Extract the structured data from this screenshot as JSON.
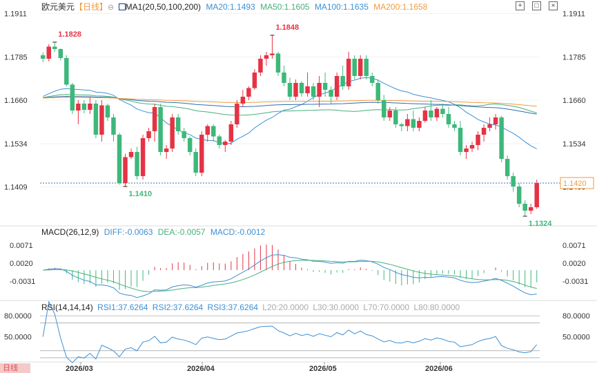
{
  "header": {
    "symbol": "欧元美元",
    "period_label": "【日线】",
    "period_icon": "settings-circle-icon",
    "ma_icon": "chart-indicator-icon",
    "ma_title": "MA1(20,50,100,200)",
    "ma20": "MA20:1.1493",
    "ma50": "MA50:1.1605",
    "ma100": "MA100:1.1635",
    "ma200": "MA200:1.1658"
  },
  "toolbar": {
    "icons": [
      "expand-icon",
      "fullscreen-icon",
      "close-icon"
    ]
  },
  "colors": {
    "up": "#e53344",
    "down": "#3db87a",
    "ma20": "#3b8fd4",
    "ma50": "#45b07a",
    "ma100": "#2f6cb0",
    "ma200": "#f09a3a",
    "text_label": "#555555"
  },
  "chart_data": [
    {
      "type": "candlestick",
      "title": "欧元美元",
      "x_labels": [
        "2026/03",
        "2026/04",
        "2026/05",
        "2026/06"
      ],
      "y_ticks": [
        "1.1911",
        "1.1785",
        "1.1660",
        "1.1534",
        "1.1409"
      ],
      "ylim": [
        1.13,
        1.193
      ],
      "last_price": "1.1420",
      "annotations": {
        "high1": "1.1828",
        "high2": "1.1848",
        "low1": "1.1410",
        "low2": "1.1324"
      },
      "candles": [
        [
          1.179,
          1.1798,
          1.177,
          1.178
        ],
        [
          1.178,
          1.1822,
          1.1772,
          1.1815
        ],
        [
          1.1815,
          1.1828,
          1.18,
          1.1808
        ],
        [
          1.1808,
          1.181,
          1.1775,
          1.1782
        ],
        [
          1.1782,
          1.179,
          1.17,
          1.1705
        ],
        [
          1.1705,
          1.171,
          1.162,
          1.163
        ],
        [
          1.163,
          1.166,
          1.159,
          1.165
        ],
        [
          1.165,
          1.166,
          1.1622,
          1.1632
        ],
        [
          1.1632,
          1.1668,
          1.162,
          1.165
        ],
        [
          1.165,
          1.166,
          1.155,
          1.156
        ],
        [
          1.156,
          1.166,
          1.154,
          1.1645
        ],
        [
          1.1645,
          1.165,
          1.16,
          1.161
        ],
        [
          1.161,
          1.162,
          1.154,
          1.156
        ],
        [
          1.156,
          1.1565,
          1.1415,
          1.142
        ],
        [
          1.142,
          1.1505,
          1.141,
          1.1495
        ],
        [
          1.1495,
          1.152,
          1.149,
          1.151
        ],
        [
          1.151,
          1.1525,
          1.143,
          1.144
        ],
        [
          1.144,
          1.156,
          1.143,
          1.155
        ],
        [
          1.155,
          1.158,
          1.154,
          1.157
        ],
        [
          1.157,
          1.165,
          1.154,
          1.164
        ],
        [
          1.164,
          1.165,
          1.15,
          1.151
        ],
        [
          1.151,
          1.153,
          1.149,
          1.152
        ],
        [
          1.152,
          1.162,
          1.151,
          1.161
        ],
        [
          1.161,
          1.162,
          1.156,
          1.157
        ],
        [
          1.157,
          1.158,
          1.154,
          1.155
        ],
        [
          1.155,
          1.1555,
          1.15,
          1.151
        ],
        [
          1.151,
          1.152,
          1.144,
          1.145
        ],
        [
          1.145,
          1.157,
          1.144,
          1.156
        ],
        [
          1.156,
          1.159,
          1.154,
          1.1585
        ],
        [
          1.1585,
          1.159,
          1.154,
          1.1555
        ],
        [
          1.1555,
          1.156,
          1.152,
          1.153
        ],
        [
          1.153,
          1.1545,
          1.151,
          1.154
        ],
        [
          1.154,
          1.16,
          1.153,
          1.159
        ],
        [
          1.159,
          1.166,
          1.158,
          1.165
        ],
        [
          1.165,
          1.169,
          1.164,
          1.167
        ],
        [
          1.167,
          1.17,
          1.166,
          1.1695
        ],
        [
          1.1695,
          1.175,
          1.169,
          1.174
        ],
        [
          1.174,
          1.179,
          1.173,
          1.178
        ],
        [
          1.178,
          1.18,
          1.176,
          1.179
        ],
        [
          1.179,
          1.1848,
          1.178,
          1.1795
        ],
        [
          1.1795,
          1.18,
          1.173,
          1.174
        ],
        [
          1.174,
          1.176,
          1.17,
          1.171
        ],
        [
          1.171,
          1.1725,
          1.166,
          1.167
        ],
        [
          1.167,
          1.172,
          1.166,
          1.171
        ],
        [
          1.171,
          1.1715,
          1.167,
          1.168
        ],
        [
          1.168,
          1.174,
          1.167,
          1.17
        ],
        [
          1.17,
          1.171,
          1.166,
          1.167
        ],
        [
          1.167,
          1.173,
          1.164,
          1.171
        ],
        [
          1.171,
          1.174,
          1.167,
          1.169
        ],
        [
          1.169,
          1.17,
          1.165,
          1.167
        ],
        [
          1.167,
          1.174,
          1.166,
          1.173
        ],
        [
          1.173,
          1.176,
          1.169,
          1.17
        ],
        [
          1.17,
          1.18,
          1.169,
          1.178
        ],
        [
          1.178,
          1.179,
          1.172,
          1.173
        ],
        [
          1.173,
          1.179,
          1.172,
          1.178
        ],
        [
          1.178,
          1.179,
          1.172,
          1.173
        ],
        [
          1.173,
          1.174,
          1.17,
          1.171
        ],
        [
          1.171,
          1.172,
          1.165,
          1.166
        ],
        [
          1.166,
          1.1675,
          1.16,
          1.161
        ],
        [
          1.161,
          1.164,
          1.16,
          1.163
        ],
        [
          1.163,
          1.164,
          1.158,
          1.159
        ],
        [
          1.159,
          1.1595,
          1.157,
          1.1585
        ],
        [
          1.1585,
          1.162,
          1.157,
          1.1605
        ],
        [
          1.1605,
          1.163,
          1.157,
          1.158
        ],
        [
          1.158,
          1.161,
          1.157,
          1.16
        ],
        [
          1.16,
          1.164,
          1.1595,
          1.163
        ],
        [
          1.163,
          1.166,
          1.16,
          1.161
        ],
        [
          1.161,
          1.164,
          1.16,
          1.1635
        ],
        [
          1.1635,
          1.165,
          1.161,
          1.162
        ],
        [
          1.162,
          1.164,
          1.158,
          1.159
        ],
        [
          1.159,
          1.16,
          1.157,
          1.158
        ],
        [
          1.158,
          1.16,
          1.15,
          1.151
        ],
        [
          1.151,
          1.153,
          1.149,
          1.152
        ],
        [
          1.152,
          1.154,
          1.151,
          1.153
        ],
        [
          1.153,
          1.157,
          1.1515,
          1.156
        ],
        [
          1.156,
          1.159,
          1.154,
          1.158
        ],
        [
          1.158,
          1.161,
          1.157,
          1.159
        ],
        [
          1.159,
          1.162,
          1.1575,
          1.161
        ],
        [
          1.161,
          1.1615,
          1.148,
          1.149
        ],
        [
          1.149,
          1.15,
          1.143,
          1.144
        ],
        [
          1.144,
          1.145,
          1.1395,
          1.141
        ],
        [
          1.141,
          1.142,
          1.135,
          1.136
        ],
        [
          1.136,
          1.137,
          1.1324,
          1.134
        ],
        [
          1.134,
          1.136,
          1.133,
          1.135
        ],
        [
          1.135,
          1.143,
          1.1345,
          1.142
        ]
      ]
    },
    {
      "type": "bar",
      "title": "MACD(26,12,9)",
      "diff_label": "DIFF:-0.0063",
      "dea_label": "DEA:-0.0057",
      "macd_label": "MACD:-0.0012",
      "y_ticks": [
        "0.0071",
        "0.0020",
        "-0.0031"
      ],
      "ylim": [
        -0.008,
        0.01
      ]
    },
    {
      "type": "line",
      "title": "RSI(14,14,14)",
      "rsi1_label": "RSI1:37.6264",
      "rsi2_label": "RSI2:37.6264",
      "rsi3_label": "RSI3:37.6264",
      "l20_label": "L20:20.0000",
      "l30_label": "L30:30.0000",
      "l70_label": "L70:70.0000",
      "l80_label": "L80:80.0000",
      "y_ticks": [
        "80.0000",
        "50.0000"
      ],
      "ylim": [
        15,
        90
      ]
    }
  ],
  "footer": {
    "watermark": "日线"
  }
}
